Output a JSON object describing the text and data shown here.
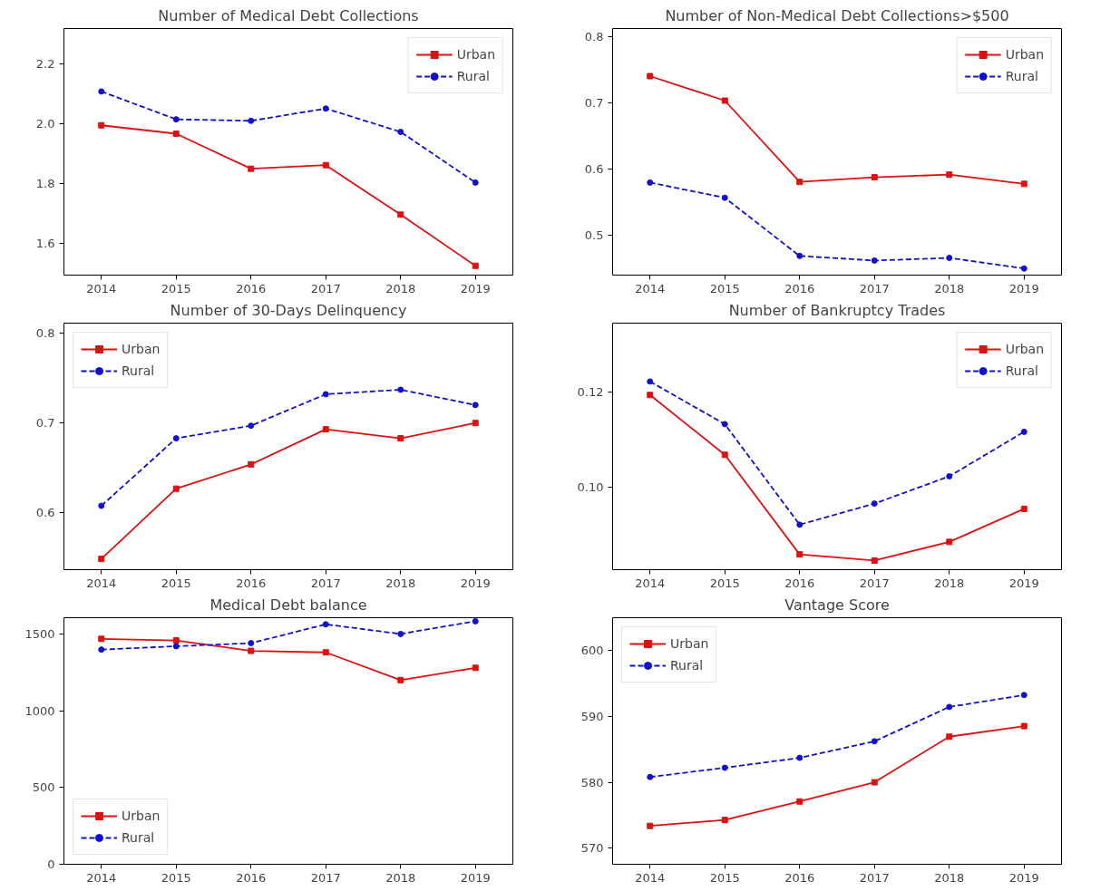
{
  "chart_data": [
    {
      "type": "line",
      "title": "Number of Medical Debt Collections",
      "x": [
        2014,
        2015,
        2016,
        2017,
        2018,
        2019
      ],
      "xlim": [
        2013.5,
        2019.5
      ],
      "xticks": [
        2014,
        2015,
        2016,
        2017,
        2018,
        2019
      ],
      "ylim": [
        1.495,
        2.318
      ],
      "yticks": [
        {
          "value": 1.6,
          "label": "1.6"
        },
        {
          "value": 1.8,
          "label": "1.8"
        },
        {
          "value": 2.0,
          "label": "2.0"
        },
        {
          "value": 2.2,
          "label": "2.2"
        }
      ],
      "grid": false,
      "legend": "top right",
      "series": [
        {
          "name": "Urban",
          "color": "#dd1111",
          "marker": "square",
          "line_style": "solid",
          "values": [
            1.995,
            1.967,
            1.85,
            1.862,
            1.697,
            1.526
          ]
        },
        {
          "name": "Rural",
          "color": "#1111cc",
          "marker": "circle",
          "line_style": "dashed",
          "values": [
            2.108,
            2.015,
            2.01,
            2.051,
            1.973,
            1.804
          ]
        }
      ]
    },
    {
      "type": "line",
      "title": "Number of Non-Medical Debt Collections>$500",
      "x": [
        2014,
        2015,
        2016,
        2017,
        2018,
        2019
      ],
      "xlim": [
        2013.5,
        2019.5
      ],
      "xticks": [
        2014,
        2015,
        2016,
        2017,
        2018,
        2019
      ],
      "ylim": [
        0.44,
        0.813
      ],
      "yticks": [
        0.5,
        0.6,
        0.7,
        0.8
      ],
      "grid": false,
      "legend": "top right",
      "series": [
        {
          "name": "Urban",
          "color": "#dd1111",
          "marker": "square",
          "line_style": "solid",
          "values": [
            0.741,
            0.704,
            0.581,
            0.588,
            0.592,
            0.578
          ]
        },
        {
          "name": "Rural",
          "color": "#1111cc",
          "marker": "circle",
          "line_style": "dashed",
          "values": [
            0.58,
            0.557,
            0.469,
            0.462,
            0.466,
            0.45
          ]
        }
      ]
    },
    {
      "type": "line",
      "title": "Number of 30-Days Delinquency",
      "x": [
        2014,
        2015,
        2016,
        2017,
        2018,
        2019
      ],
      "xlim": [
        2013.5,
        2019.5
      ],
      "xticks": [
        2014,
        2015,
        2016,
        2017,
        2018,
        2019
      ],
      "ylim": [
        0.537,
        0.811
      ],
      "yticks": [
        0.6,
        0.7,
        0.8
      ],
      "grid": false,
      "legend": "top left",
      "series": [
        {
          "name": "Urban",
          "color": "#dd1111",
          "marker": "square",
          "line_style": "solid",
          "values": [
            0.549,
            0.627,
            0.654,
            0.693,
            0.683,
            0.7
          ]
        },
        {
          "name": "Rural",
          "color": "#1111cc",
          "marker": "circle",
          "line_style": "dashed",
          "values": [
            0.608,
            0.683,
            0.697,
            0.732,
            0.737,
            0.72
          ]
        }
      ]
    },
    {
      "type": "line",
      "title": "Number of Bankruptcy Trades",
      "x": [
        2014,
        2015,
        2016,
        2017,
        2018,
        2019
      ],
      "xlim": [
        2013.5,
        2019.5
      ],
      "xticks": [
        2014,
        2015,
        2016,
        2017,
        2018,
        2019
      ],
      "ylim": [
        0.0828,
        0.1343
      ],
      "yticks": [
        {
          "value": 0.1,
          "label": "0.10"
        },
        {
          "value": 0.12,
          "label": "0.12"
        }
      ],
      "grid": false,
      "legend": "top right",
      "series": [
        {
          "name": "Urban",
          "color": "#dd1111",
          "marker": "square",
          "line_style": "solid",
          "values": [
            0.1193,
            0.1068,
            0.086,
            0.0847,
            0.0886,
            0.0955
          ]
        },
        {
          "name": "Rural",
          "color": "#1111cc",
          "marker": "circle",
          "line_style": "dashed",
          "values": [
            0.1221,
            0.1132,
            0.0922,
            0.0966,
            0.1023,
            0.1116
          ]
        }
      ]
    },
    {
      "type": "line",
      "title": "Medical Debt balance",
      "x": [
        2014,
        2015,
        2016,
        2017,
        2018,
        2019
      ],
      "xlim": [
        2013.5,
        2019.5
      ],
      "xticks": [
        2014,
        2015,
        2016,
        2017,
        2018,
        2019
      ],
      "ylim": [
        0,
        1608
      ],
      "yticks": [
        0,
        500,
        1000,
        1500
      ],
      "grid": false,
      "legend": "bottom left",
      "series": [
        {
          "name": "Urban",
          "color": "#dd1111",
          "marker": "square",
          "line_style": "solid",
          "values": [
            1470,
            1460,
            1392,
            1382,
            1201,
            1281
          ]
        },
        {
          "name": "Rural",
          "color": "#1111cc",
          "marker": "circle",
          "line_style": "dashed",
          "values": [
            1400,
            1422,
            1442,
            1565,
            1502,
            1585
          ]
        }
      ]
    },
    {
      "type": "line",
      "title": "Vantage Score",
      "x": [
        2014,
        2015,
        2016,
        2017,
        2018,
        2019
      ],
      "xlim": [
        2013.5,
        2019.5
      ],
      "xticks": [
        2014,
        2015,
        2016,
        2017,
        2018,
        2019
      ],
      "ylim": [
        567.6,
        604.9
      ],
      "yticks": [
        570,
        580,
        590,
        600
      ],
      "grid": false,
      "legend": "top left",
      "series": [
        {
          "name": "Urban",
          "color": "#dd1111",
          "marker": "square",
          "line_style": "solid",
          "values": [
            573.4,
            574.3,
            577.1,
            580.0,
            586.9,
            588.5
          ]
        },
        {
          "name": "Rural",
          "color": "#1111cc",
          "marker": "circle",
          "line_style": "dashed",
          "values": [
            580.8,
            582.2,
            583.7,
            586.2,
            591.4,
            593.2
          ]
        }
      ]
    }
  ]
}
